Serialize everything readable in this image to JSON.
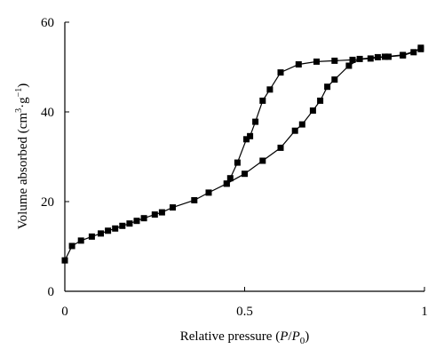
{
  "chart_data": {
    "type": "scatter",
    "xlabel": "Relative pressure (P/P0)",
    "ylabel": "Volume absorbed (cm³·g⁻¹)",
    "xlim": [
      0,
      1
    ],
    "ylim": [
      0,
      60
    ],
    "xticks": [
      0,
      0.5,
      1
    ],
    "xtick_labels": [
      "0",
      "0.5",
      "1"
    ],
    "yticks": [
      0,
      20,
      40,
      60
    ],
    "ytick_labels": [
      "0",
      "20",
      "40",
      "60"
    ],
    "grid": false,
    "legend": "none",
    "marker": "square",
    "series": [
      {
        "values_xy": [
          [
            0.0,
            6.9
          ],
          [
            0.02,
            10.1
          ],
          [
            0.045,
            11.3
          ],
          [
            0.075,
            12.2
          ],
          [
            0.1,
            12.9
          ],
          [
            0.12,
            13.5
          ],
          [
            0.14,
            14.0
          ],
          [
            0.16,
            14.6
          ],
          [
            0.18,
            15.1
          ],
          [
            0.2,
            15.7
          ],
          [
            0.22,
            16.3
          ],
          [
            0.25,
            17.1
          ],
          [
            0.27,
            17.6
          ],
          [
            0.3,
            18.7
          ],
          [
            0.36,
            20.3
          ],
          [
            0.4,
            22.0
          ],
          [
            0.45,
            24.0
          ],
          [
            0.5,
            26.2
          ],
          [
            0.55,
            29.1
          ],
          [
            0.6,
            32.0
          ],
          [
            0.64,
            35.8
          ],
          [
            0.66,
            37.2
          ],
          [
            0.69,
            40.3
          ],
          [
            0.71,
            42.5
          ],
          [
            0.73,
            45.6
          ],
          [
            0.75,
            47.2
          ],
          [
            0.79,
            50.3
          ],
          [
            0.82,
            51.8
          ],
          [
            0.87,
            52.2
          ],
          [
            0.9,
            52.3
          ],
          [
            0.94,
            52.6
          ],
          [
            0.97,
            53.3
          ],
          [
            0.99,
            54.3
          ]
        ]
      },
      {
        "values_xy": [
          [
            0.99,
            54.0
          ],
          [
            0.94,
            52.7
          ],
          [
            0.89,
            52.3
          ],
          [
            0.85,
            51.9
          ],
          [
            0.8,
            51.6
          ],
          [
            0.75,
            51.4
          ],
          [
            0.7,
            51.2
          ],
          [
            0.65,
            50.6
          ],
          [
            0.6,
            48.8
          ],
          [
            0.57,
            45.0
          ],
          [
            0.55,
            42.5
          ],
          [
            0.53,
            37.8
          ],
          [
            0.515,
            34.6
          ],
          [
            0.505,
            33.9
          ],
          [
            0.48,
            28.7
          ],
          [
            0.46,
            25.2
          ],
          [
            0.45,
            24.0
          ]
        ]
      }
    ]
  }
}
